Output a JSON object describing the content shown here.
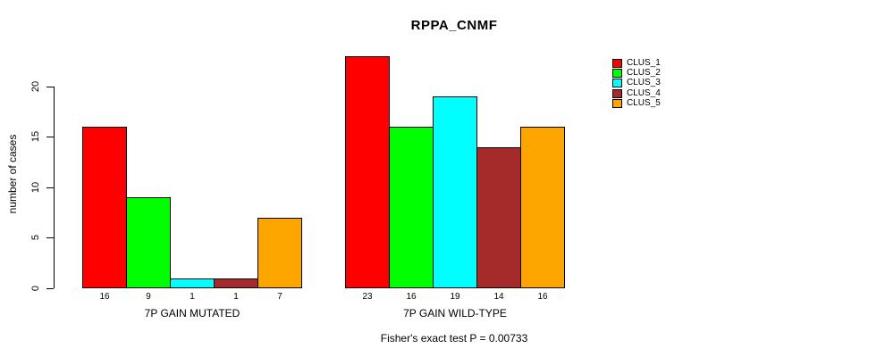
{
  "chart_data": {
    "type": "bar",
    "title": "RPPA_CNMF",
    "ylabel": "number of cases",
    "ylim": [
      0,
      23
    ],
    "yticks": [
      0,
      5,
      10,
      15,
      20
    ],
    "grid": false,
    "legend_position": "right",
    "show_bar_value_labels": true,
    "categories": [
      "7P GAIN MUTATED",
      "7P GAIN WILD-TYPE"
    ],
    "series": [
      {
        "name": "CLUS_1",
        "color": "#FF0000",
        "values": [
          16,
          23
        ]
      },
      {
        "name": "CLUS_2",
        "color": "#00FF00",
        "values": [
          9,
          16
        ]
      },
      {
        "name": "CLUS_3",
        "color": "#00FFFF",
        "values": [
          1,
          19
        ]
      },
      {
        "name": "CLUS_4",
        "color": "#A52A2A",
        "values": [
          1,
          14
        ]
      },
      {
        "name": "CLUS_5",
        "color": "#FFA500",
        "values": [
          7,
          16
        ]
      }
    ],
    "annotation": "Fisher's exact test P = 0.00733"
  }
}
